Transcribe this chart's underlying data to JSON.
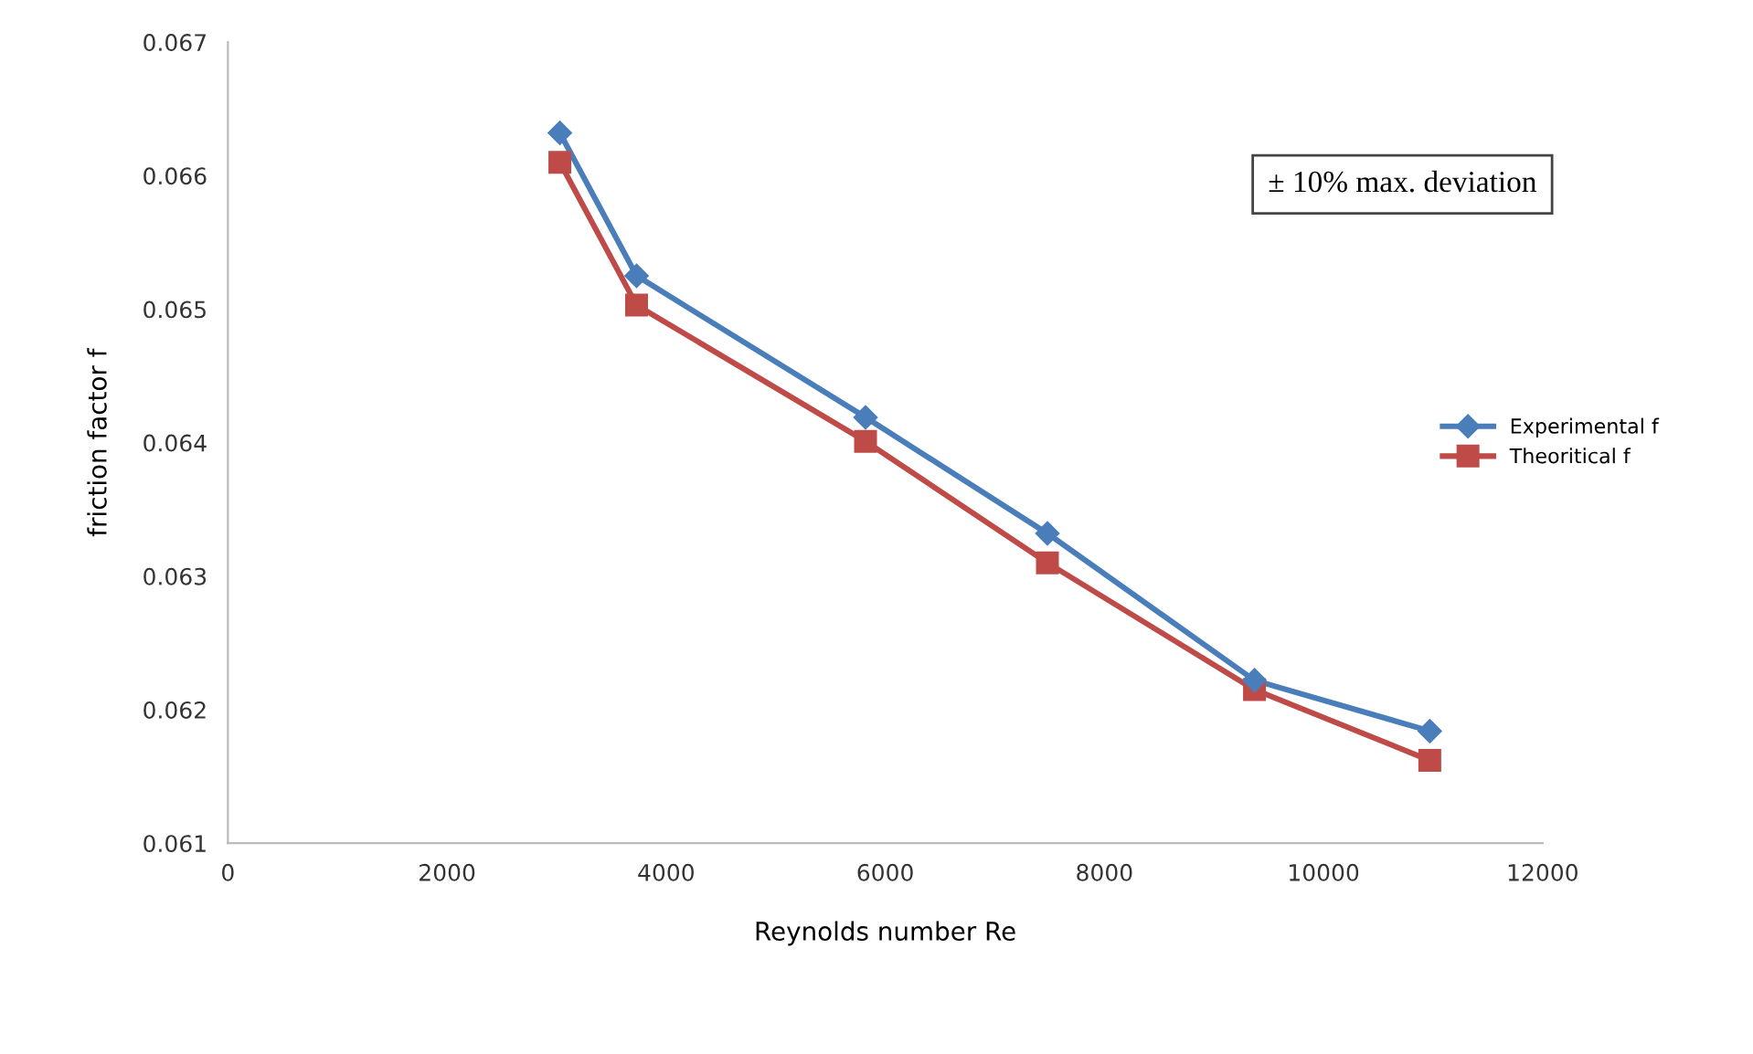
{
  "chart_data": {
    "type": "line",
    "xlabel": "Reynolds number Re",
    "ylabel": "friction factor f",
    "x": [
      3030,
      3730,
      5820,
      7480,
      9370,
      10970
    ],
    "series": [
      {
        "name": "Experimental f",
        "color": "#4a7ebb",
        "marker": "diamond",
        "values": [
          0.06632,
          0.06525,
          0.06419,
          0.06332,
          0.06222,
          0.06184
        ]
      },
      {
        "name": "Theoritical f",
        "color": "#be4b48",
        "marker": "square",
        "values": [
          0.0661,
          0.06503,
          0.06401,
          0.0631,
          0.06215,
          0.06162
        ]
      }
    ],
    "xlim": [
      0,
      12000
    ],
    "xticks": [
      0,
      2000,
      4000,
      6000,
      8000,
      10000,
      12000
    ],
    "ylim": [
      0.061,
      0.067
    ],
    "yticks": [
      0.061,
      0.062,
      0.063,
      0.064,
      0.065,
      0.066,
      0.067
    ],
    "grid": false,
    "legend": "right",
    "line_style": "solid",
    "annotations": [
      "± 10% max. deviation"
    ]
  }
}
